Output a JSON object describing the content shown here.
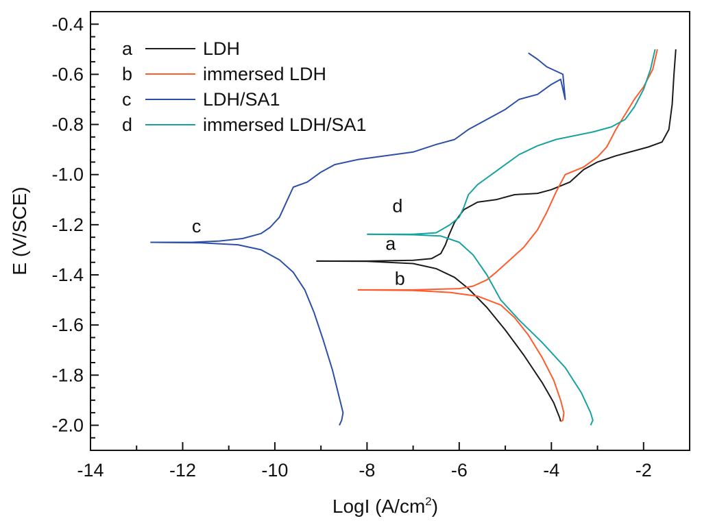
{
  "chart_data": {
    "type": "line",
    "title": "",
    "xlabel": "LogI (A/cm",
    "xlabel_sup": "2",
    "xlabel_suffix": ")",
    "ylabel": "E (V/SCE)",
    "xlim": [
      -14,
      -1
    ],
    "ylim": [
      -2.1,
      -0.35
    ],
    "x_ticks": [
      -14,
      -12,
      -10,
      -8,
      -6,
      -4,
      -2
    ],
    "y_ticks": [
      -0.4,
      -0.6,
      -0.8,
      -1.0,
      -1.2,
      -1.4,
      -1.6,
      -1.8,
      -2.0
    ],
    "x_tick_labels": [
      "-14",
      "-12",
      "-10",
      "-8",
      "-6",
      "-4",
      "-2"
    ],
    "y_tick_labels": [
      "-0.4",
      "-0.6",
      "-0.8",
      "-1.0",
      "-1.2",
      "-1.4",
      "-1.6",
      "-1.8",
      "-2.0"
    ],
    "grid": false,
    "legend_position": "top-left",
    "series": [
      {
        "key": "a",
        "name": "LDH",
        "color": "#1a1a1a",
        "curve_label": "a",
        "label_at": [
          -7.6,
          -1.3
        ],
        "points": [
          [
            -9.1,
            -1.345
          ],
          [
            -8.0,
            -1.345
          ],
          [
            -7.0,
            -1.342
          ],
          [
            -6.6,
            -1.335
          ],
          [
            -6.4,
            -1.315
          ],
          [
            -6.3,
            -1.28
          ],
          [
            -6.22,
            -1.24
          ],
          [
            -6.1,
            -1.19
          ],
          [
            -5.9,
            -1.14
          ],
          [
            -5.6,
            -1.11
          ],
          [
            -5.2,
            -1.1
          ],
          [
            -4.8,
            -1.08
          ],
          [
            -4.3,
            -1.075
          ],
          [
            -4.0,
            -1.06
          ],
          [
            -3.6,
            -1.03
          ],
          [
            -3.3,
            -0.98
          ],
          [
            -3.0,
            -0.95
          ],
          [
            -2.6,
            -0.925
          ],
          [
            -2.2,
            -0.905
          ],
          [
            -1.9,
            -0.89
          ],
          [
            -1.6,
            -0.87
          ],
          [
            -1.45,
            -0.82
          ],
          [
            -1.38,
            -0.72
          ],
          [
            -1.34,
            -0.6
          ],
          [
            -1.3,
            -0.5
          ]
        ],
        "cathodic": [
          [
            -9.1,
            -1.345
          ],
          [
            -8.0,
            -1.346
          ],
          [
            -7.0,
            -1.355
          ],
          [
            -6.5,
            -1.375
          ],
          [
            -6.1,
            -1.41
          ],
          [
            -5.8,
            -1.455
          ],
          [
            -5.4,
            -1.53
          ],
          [
            -5.0,
            -1.62
          ],
          [
            -4.6,
            -1.72
          ],
          [
            -4.2,
            -1.83
          ],
          [
            -3.95,
            -1.91
          ],
          [
            -3.82,
            -1.97
          ],
          [
            -3.8,
            -1.985
          ]
        ]
      },
      {
        "key": "b",
        "name": "immersed LDH",
        "color": "#ff5a2a",
        "curve_label": "b",
        "label_at": [
          -7.4,
          -1.44
        ],
        "points": [
          [
            -8.2,
            -1.46
          ],
          [
            -7.0,
            -1.46
          ],
          [
            -6.0,
            -1.455
          ],
          [
            -5.7,
            -1.445
          ],
          [
            -5.4,
            -1.42
          ],
          [
            -5.2,
            -1.39
          ],
          [
            -4.9,
            -1.34
          ],
          [
            -4.6,
            -1.29
          ],
          [
            -4.3,
            -1.22
          ],
          [
            -4.1,
            -1.15
          ],
          [
            -3.9,
            -1.07
          ],
          [
            -3.7,
            -1.0
          ],
          [
            -3.3,
            -0.97
          ],
          [
            -3.0,
            -0.93
          ],
          [
            -2.8,
            -0.89
          ],
          [
            -2.6,
            -0.82
          ],
          [
            -2.4,
            -0.76
          ],
          [
            -2.2,
            -0.7
          ],
          [
            -2.0,
            -0.65
          ],
          [
            -1.8,
            -0.58
          ],
          [
            -1.7,
            -0.5
          ]
        ],
        "cathodic": [
          [
            -8.2,
            -1.46
          ],
          [
            -7.0,
            -1.462
          ],
          [
            -6.2,
            -1.47
          ],
          [
            -5.6,
            -1.485
          ],
          [
            -5.1,
            -1.52
          ],
          [
            -4.8,
            -1.57
          ],
          [
            -4.5,
            -1.64
          ],
          [
            -4.2,
            -1.73
          ],
          [
            -3.95,
            -1.82
          ],
          [
            -3.8,
            -1.9
          ],
          [
            -3.73,
            -1.95
          ],
          [
            -3.75,
            -1.98
          ],
          [
            -3.8,
            -1.985
          ]
        ]
      },
      {
        "key": "c",
        "name": "LDH/SA1",
        "color": "#2b4fa8",
        "curve_label": "c",
        "label_at": [
          -11.8,
          -1.23
        ],
        "points": [
          [
            -12.7,
            -1.27
          ],
          [
            -11.8,
            -1.27
          ],
          [
            -11.2,
            -1.265
          ],
          [
            -10.7,
            -1.255
          ],
          [
            -10.3,
            -1.235
          ],
          [
            -10.1,
            -1.21
          ],
          [
            -9.9,
            -1.17
          ],
          [
            -9.75,
            -1.11
          ],
          [
            -9.6,
            -1.05
          ],
          [
            -9.3,
            -1.03
          ],
          [
            -9.0,
            -0.99
          ],
          [
            -8.7,
            -0.96
          ],
          [
            -8.2,
            -0.94
          ],
          [
            -7.6,
            -0.925
          ],
          [
            -7.0,
            -0.91
          ],
          [
            -6.5,
            -0.88
          ],
          [
            -6.1,
            -0.86
          ],
          [
            -5.8,
            -0.82
          ],
          [
            -5.4,
            -0.78
          ],
          [
            -5.0,
            -0.74
          ],
          [
            -4.7,
            -0.7
          ],
          [
            -4.3,
            -0.68
          ],
          [
            -4.0,
            -0.64
          ],
          [
            -3.8,
            -0.62
          ],
          [
            -3.7,
            -0.7
          ],
          [
            -3.75,
            -0.6
          ],
          [
            -4.1,
            -0.57
          ],
          [
            -4.3,
            -0.54
          ],
          [
            -4.5,
            -0.515
          ]
        ],
        "cathodic": [
          [
            -12.7,
            -1.27
          ],
          [
            -11.6,
            -1.272
          ],
          [
            -10.8,
            -1.28
          ],
          [
            -10.3,
            -1.3
          ],
          [
            -9.9,
            -1.34
          ],
          [
            -9.6,
            -1.39
          ],
          [
            -9.35,
            -1.46
          ],
          [
            -9.15,
            -1.55
          ],
          [
            -8.95,
            -1.66
          ],
          [
            -8.75,
            -1.78
          ],
          [
            -8.6,
            -1.89
          ],
          [
            -8.52,
            -1.95
          ],
          [
            -8.55,
            -1.98
          ],
          [
            -8.6,
            -2.0
          ]
        ]
      },
      {
        "key": "d",
        "name": "immersed LDH/SA1",
        "color": "#17a2a0",
        "curve_label": "d",
        "label_at": [
          -7.45,
          -1.15
        ],
        "points": [
          [
            -8.0,
            -1.238
          ],
          [
            -7.0,
            -1.238
          ],
          [
            -6.5,
            -1.232
          ],
          [
            -6.2,
            -1.2
          ],
          [
            -6.0,
            -1.17
          ],
          [
            -5.9,
            -1.13
          ],
          [
            -5.8,
            -1.08
          ],
          [
            -5.6,
            -1.04
          ],
          [
            -5.3,
            -1.0
          ],
          [
            -5.0,
            -0.96
          ],
          [
            -4.7,
            -0.92
          ],
          [
            -4.3,
            -0.885
          ],
          [
            -3.9,
            -0.86
          ],
          [
            -3.5,
            -0.845
          ],
          [
            -3.1,
            -0.83
          ],
          [
            -2.7,
            -0.81
          ],
          [
            -2.4,
            -0.78
          ],
          [
            -2.2,
            -0.73
          ],
          [
            -2.0,
            -0.66
          ],
          [
            -1.85,
            -0.58
          ],
          [
            -1.75,
            -0.5
          ]
        ],
        "cathodic": [
          [
            -8.0,
            -1.238
          ],
          [
            -7.0,
            -1.24
          ],
          [
            -6.4,
            -1.245
          ],
          [
            -6.0,
            -1.27
          ],
          [
            -5.7,
            -1.32
          ],
          [
            -5.4,
            -1.4
          ],
          [
            -5.1,
            -1.5
          ],
          [
            -4.7,
            -1.58
          ],
          [
            -4.2,
            -1.67
          ],
          [
            -3.7,
            -1.77
          ],
          [
            -3.35,
            -1.87
          ],
          [
            -3.15,
            -1.95
          ],
          [
            -3.1,
            -1.98
          ],
          [
            -3.15,
            -2.0
          ]
        ]
      }
    ]
  }
}
